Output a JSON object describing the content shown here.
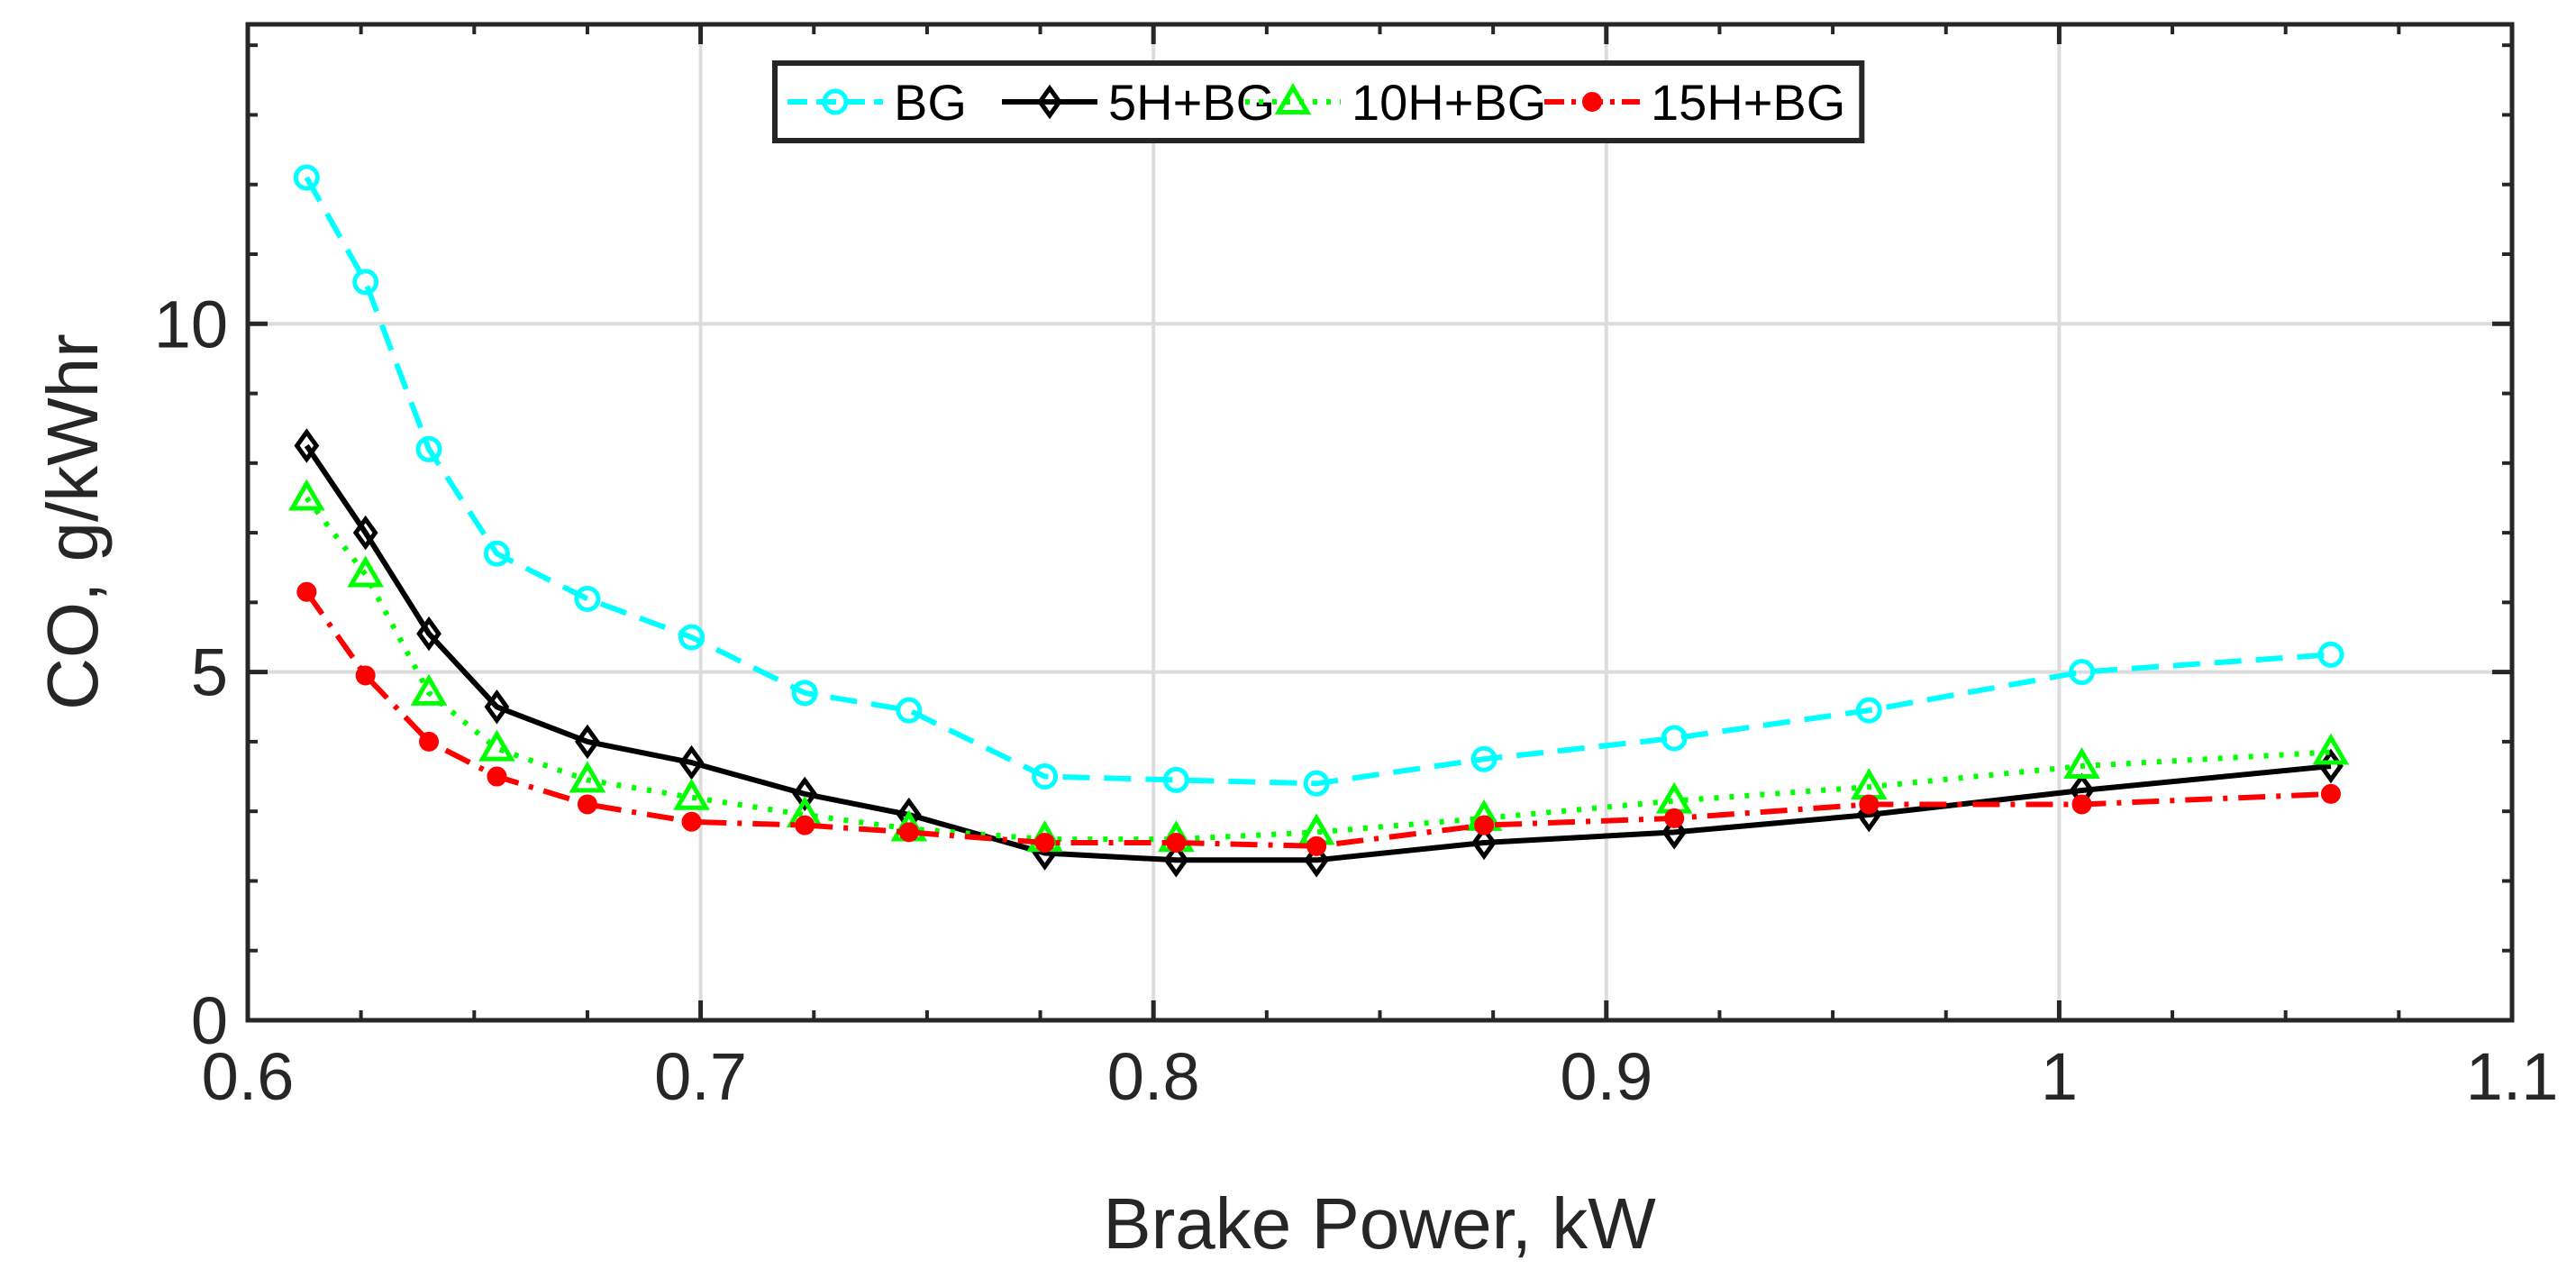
{
  "chart_data": {
    "type": "line",
    "title": "",
    "xlabel": "Brake Power, kW",
    "ylabel": "CO, g/kWhr",
    "xlim": [
      0.6,
      1.1
    ],
    "ylim": [
      0,
      14.3
    ],
    "x_ticks": [
      0.6,
      0.7,
      0.8,
      0.9,
      1.0,
      1.1
    ],
    "x_tick_labels": [
      "0.6",
      "0.7",
      "0.8",
      "0.9",
      "1",
      "1.1"
    ],
    "y_ticks": [
      0,
      5,
      10
    ],
    "y_tick_labels": [
      "0",
      "5",
      "10"
    ],
    "grid": true,
    "legend_position": "top-center",
    "x": [
      0.613,
      0.626,
      0.64,
      0.655,
      0.675,
      0.698,
      0.723,
      0.746,
      0.776,
      0.805,
      0.836,
      0.873,
      0.915,
      0.958,
      1.005,
      1.06
    ],
    "series": [
      {
        "name": "BG",
        "color": "#00ffff",
        "line_style": "dashed",
        "marker": "circle-open",
        "values": [
          12.1,
          10.6,
          8.2,
          6.7,
          6.05,
          5.5,
          4.7,
          4.45,
          3.5,
          3.45,
          3.4,
          3.75,
          4.05,
          4.45,
          5.0,
          5.25
        ]
      },
      {
        "name": "5H+BG",
        "color": "#000000",
        "line_style": "solid",
        "marker": "diamond-open",
        "values": [
          8.25,
          7.0,
          5.55,
          4.5,
          4.0,
          3.7,
          3.25,
          2.95,
          2.4,
          2.3,
          2.3,
          2.55,
          2.7,
          2.95,
          3.3,
          3.65
        ]
      },
      {
        "name": "10H+BG",
        "color": "#00ff00",
        "line_style": "dotted",
        "marker": "triangle-open",
        "values": [
          7.5,
          6.4,
          4.7,
          3.9,
          3.45,
          3.2,
          2.95,
          2.75,
          2.6,
          2.6,
          2.7,
          2.9,
          3.15,
          3.35,
          3.65,
          3.85
        ]
      },
      {
        "name": "15H+BG",
        "color": "#ff0000",
        "line_style": "dash-dot",
        "marker": "circle-filled",
        "values": [
          6.15,
          4.95,
          4.0,
          3.5,
          3.1,
          2.85,
          2.8,
          2.7,
          2.55,
          2.55,
          2.5,
          2.8,
          2.9,
          3.1,
          3.1,
          3.25
        ]
      }
    ]
  }
}
